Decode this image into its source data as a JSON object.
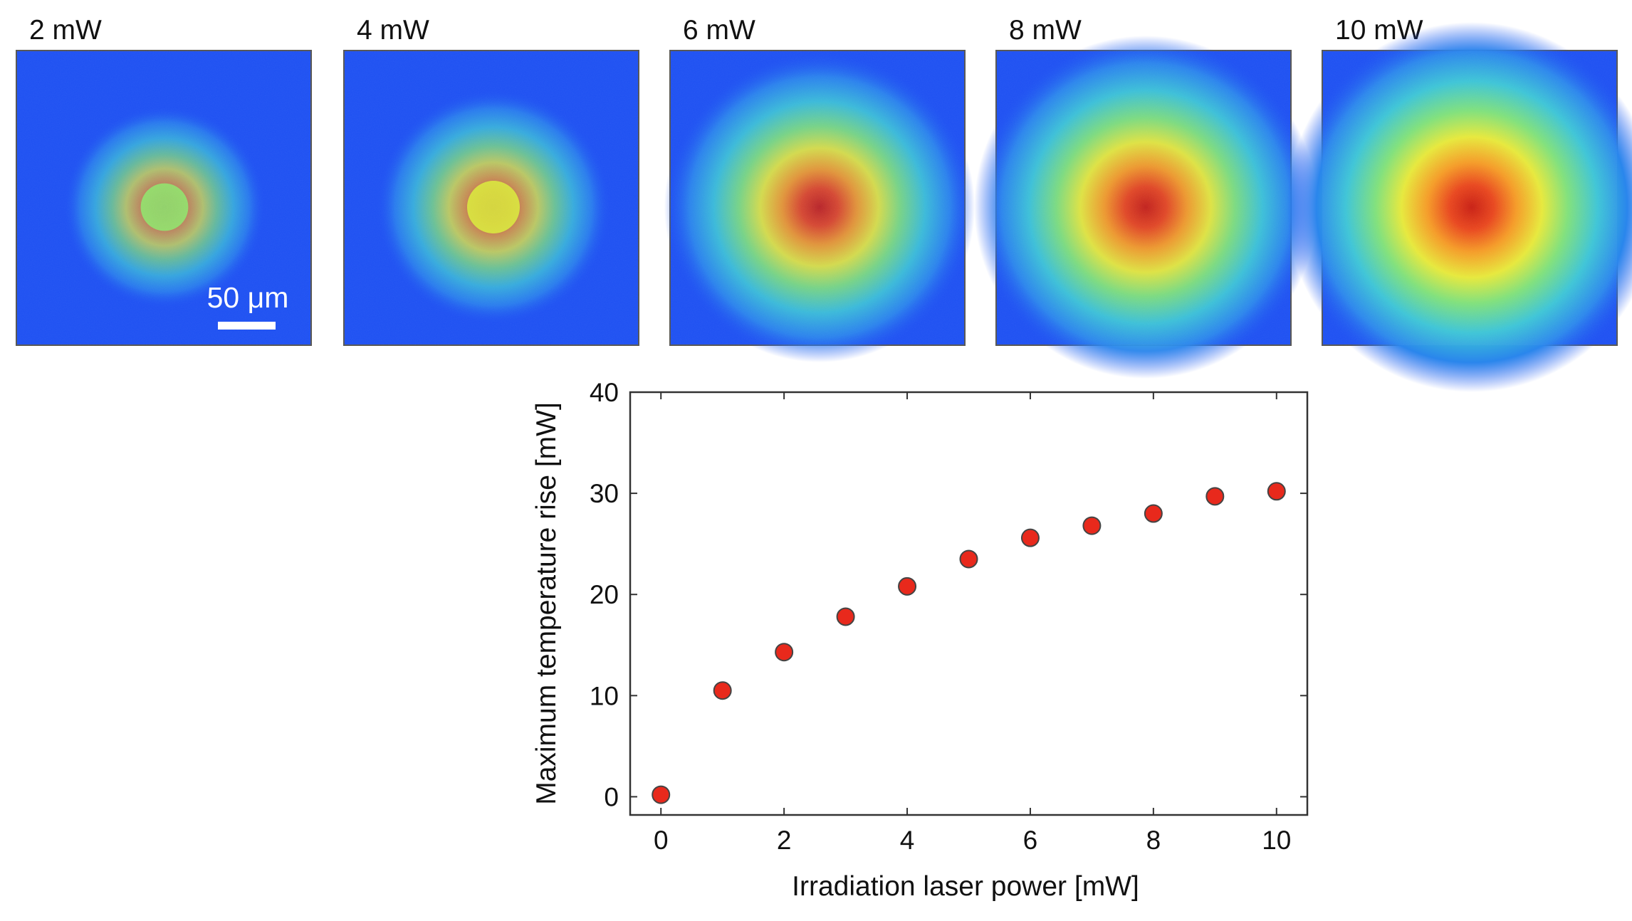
{
  "heatmap_panels": [
    {
      "label": "2 mW",
      "intensity": 0.38
    },
    {
      "label": "4 mW",
      "intensity": 0.5
    },
    {
      "label": "6 mW",
      "intensity": 0.78
    },
    {
      "label": "8 mW",
      "intensity": 0.9
    },
    {
      "label": "10 mW",
      "intensity": 1.0
    }
  ],
  "scale_bar": {
    "label": "50 μm"
  },
  "colors": {
    "background_blue": "#1c4ff2",
    "marker_fill": "#e8291c",
    "marker_edge": "#444444",
    "axis": "#333333"
  },
  "chart_data": {
    "type": "scatter",
    "title": "",
    "xlabel": "Irradiation laser power [mW]",
    "ylabel": "Maximum temperature rise [mW]",
    "xlim": [
      -0.5,
      10.5
    ],
    "ylim": [
      -1.8,
      40
    ],
    "xticks": [
      0,
      2,
      4,
      6,
      8,
      10
    ],
    "yticks": [
      0,
      10,
      20,
      30,
      40
    ],
    "grid": false,
    "series": [
      {
        "name": "Maximum temperature rise",
        "x": [
          0,
          1,
          2,
          3,
          4,
          5,
          6,
          7,
          8,
          9,
          10
        ],
        "y": [
          0.2,
          10.5,
          14.3,
          17.8,
          20.8,
          23.5,
          25.6,
          26.8,
          28.0,
          29.7,
          30.2
        ]
      }
    ]
  }
}
